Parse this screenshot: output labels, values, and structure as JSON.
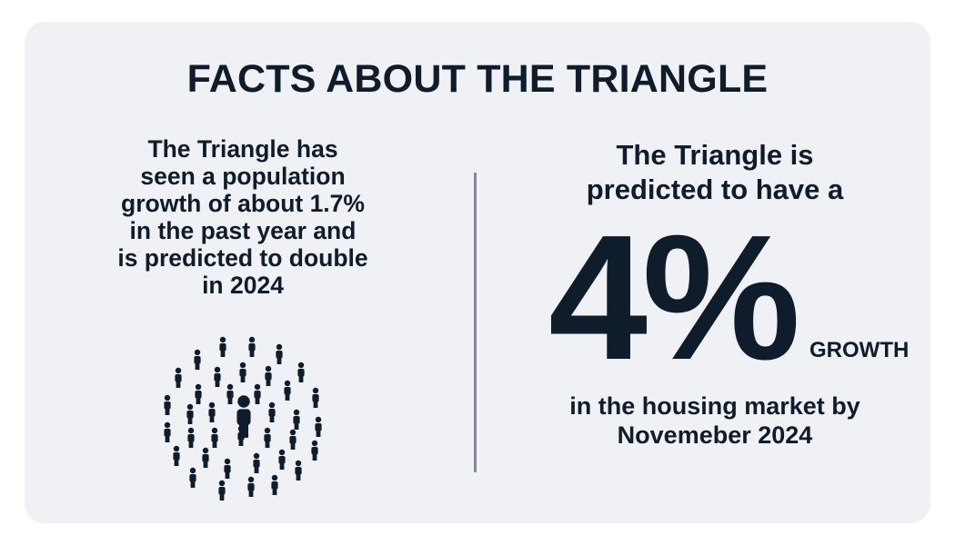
{
  "title": "FACTS ABOUT THE TRIANGLE",
  "left": {
    "lines": [
      "The Triangle has",
      "seen a population",
      "growth of about 1.7%",
      "in the past year and",
      "is predicted to double",
      "in 2024"
    ],
    "icon": "crowd-of-people-icon"
  },
  "right": {
    "intro_lines": [
      "The Triangle is",
      "predicted to have a"
    ],
    "big_number": "4%",
    "growth_label": "GROWTH",
    "outro_lines": [
      "in the housing market by",
      "Novemeber 2024"
    ]
  },
  "colors": {
    "background": "#f0f1f5",
    "text": "#0f1c2b",
    "divider": "#7d8ba0"
  }
}
